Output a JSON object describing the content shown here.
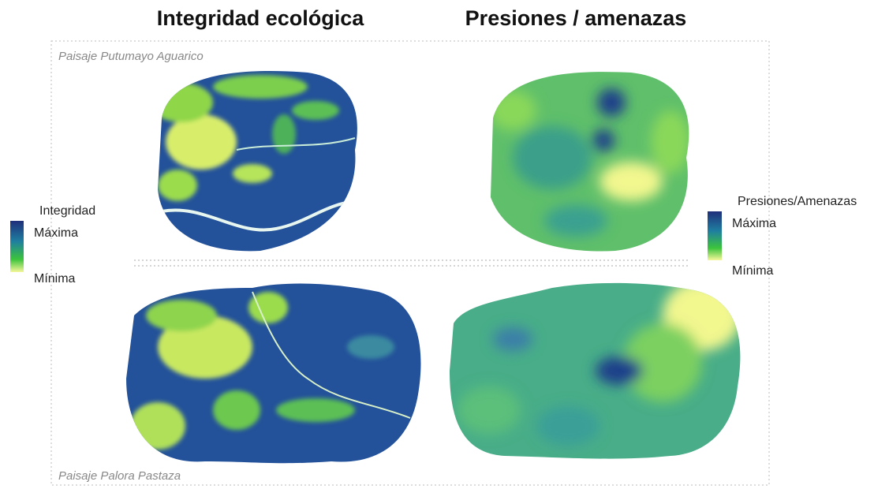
{
  "headers": [
    "Integridad ecológica",
    "Presiones / amenazas"
  ],
  "landscapes": [
    "Paisaje Putumayo Aguarico",
    "Paisaje Palora Pastaza"
  ],
  "legends": [
    {
      "title": "Integridad",
      "max": "Máxima",
      "min": "Mínima"
    },
    {
      "title": "Presiones/Amenazas",
      "max": "Máxima",
      "min": "Mínima"
    }
  ]
}
